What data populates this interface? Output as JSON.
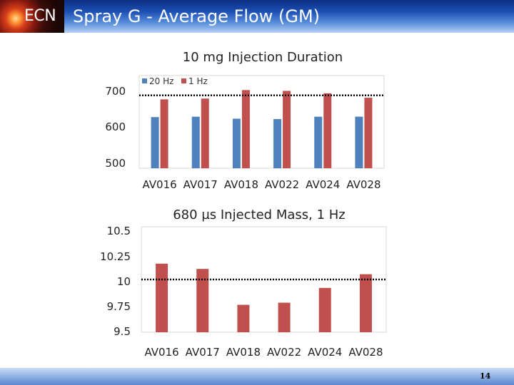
{
  "header": {
    "logo_text": "ECN",
    "title": "Spray G - Average Flow (GM)"
  },
  "footer": {
    "page_number": "14"
  },
  "colors": {
    "series_20hz": "#4f81bd",
    "series_1hz": "#c0504d",
    "reference_line": "#000000"
  },
  "chart_data": [
    {
      "type": "bar",
      "title": "10 mg Injection Duration",
      "categories": [
        "AV016",
        "AV017",
        "AV018",
        "AV022",
        "AV024",
        "AV028"
      ],
      "series": [
        {
          "name": "20 Hz",
          "values": [
            627,
            628,
            623,
            622,
            628,
            628
          ]
        },
        {
          "name": "1 Hz",
          "values": [
            671,
            673,
            694,
            692,
            686,
            675
          ]
        }
      ],
      "reference_line": 681,
      "yticks": [
        "700",
        "600",
        "500"
      ],
      "ylim": [
        500,
        730
      ],
      "legend_position": "top-left",
      "grid": false
    },
    {
      "type": "bar",
      "title": "680 µs Injected Mass, 1 Hz",
      "categories": [
        "AV016",
        "AV017",
        "AV018",
        "AV022",
        "AV024",
        "AV028"
      ],
      "series": [
        {
          "name": "",
          "values": [
            10.15,
            10.1,
            9.76,
            9.78,
            9.92,
            10.05
          ]
        }
      ],
      "reference_line": 10,
      "yticks": [
        "10.5",
        "10.25",
        "10",
        "9.75",
        "9.5"
      ],
      "ylim": [
        9.5,
        10.5
      ],
      "legend_position": "none",
      "grid": false
    }
  ]
}
